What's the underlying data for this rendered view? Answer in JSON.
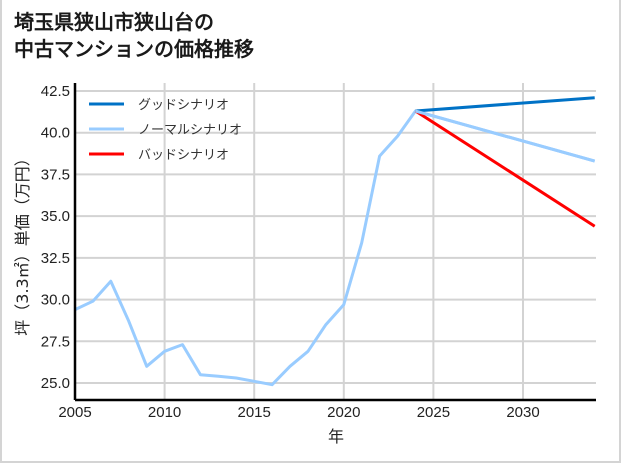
{
  "title": {
    "line1": "埼玉県狭山市狭山台の",
    "line2": "中古マンションの価格推移"
  },
  "chart_data": {
    "type": "line",
    "title": "埼玉県狭山市狭山台の中古マンションの価格推移",
    "xlabel": "年",
    "ylabel": "坪（3.3㎡）単価（万円）",
    "xlim": [
      2005,
      2034
    ],
    "ylim": [
      24.0,
      43.0
    ],
    "xticks": [
      2005,
      2010,
      2015,
      2020,
      2025,
      2030
    ],
    "yticks": [
      25.0,
      27.5,
      30.0,
      32.5,
      35.0,
      37.5,
      40.0,
      42.5
    ],
    "xtick_labels": [
      "2005",
      "2010",
      "2015",
      "2020",
      "2025",
      "2030"
    ],
    "ytick_labels": [
      "25.0",
      "27.5",
      "30.0",
      "32.5",
      "35.0",
      "37.5",
      "40.0",
      "42.5"
    ],
    "grid": true,
    "legend_position": "upper left",
    "series": [
      {
        "name": "グッドシナリオ",
        "color": "#0072c6",
        "x": [
          2024,
          2034
        ],
        "values": [
          41.3,
          42.1
        ]
      },
      {
        "name": "ノーマルシナリオ",
        "color": "#99ccff",
        "x": [
          2005,
          2006,
          2007,
          2008,
          2009,
          2010,
          2011,
          2012,
          2013,
          2014,
          2015,
          2016,
          2017,
          2018,
          2019,
          2020,
          2021,
          2022,
          2023,
          2024,
          2034
        ],
        "values": [
          29.4,
          29.9,
          31.1,
          28.7,
          26.0,
          26.9,
          27.3,
          25.5,
          25.4,
          25.3,
          25.1,
          24.9,
          26.0,
          26.9,
          28.5,
          29.7,
          33.4,
          38.6,
          39.8,
          41.3,
          38.3
        ]
      },
      {
        "name": "バッドシナリオ",
        "color": "#ff0000",
        "x": [
          2024,
          2034
        ],
        "values": [
          41.3,
          34.4
        ]
      }
    ]
  }
}
